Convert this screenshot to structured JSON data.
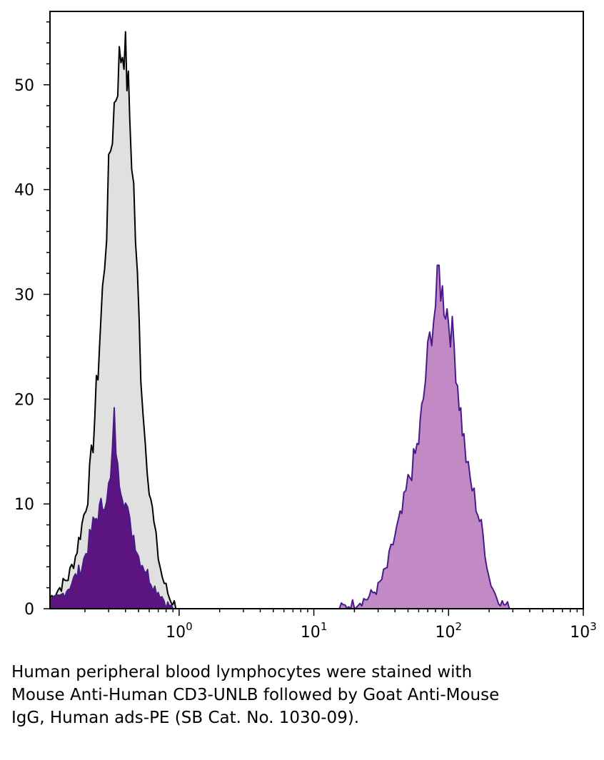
{
  "chart_data": {
    "type": "area",
    "xscale": "log",
    "xlim": [
      0.11,
      1000
    ],
    "ylim": [
      0,
      57
    ],
    "xlabel": "",
    "ylabel": "",
    "grid": false,
    "y_ticks": [
      0,
      10,
      20,
      30,
      40,
      50
    ],
    "x_ticks": [
      {
        "value": 1,
        "base": "10",
        "exp": "0"
      },
      {
        "value": 10,
        "base": "10",
        "exp": "1"
      },
      {
        "value": 100,
        "base": "10",
        "exp": "2"
      },
      {
        "value": 1000,
        "base": "10",
        "exp": "3"
      }
    ],
    "series": [
      {
        "fill": "#e0e0e0",
        "stroke": "#000000",
        "x": [
          0.11,
          0.13,
          0.15,
          0.17,
          0.19,
          0.21,
          0.23,
          0.25,
          0.27,
          0.29,
          0.31,
          0.33,
          0.35,
          0.37,
          0.39,
          0.41,
          0.43,
          0.46,
          0.49,
          0.52,
          0.56,
          0.6,
          0.65,
          0.7,
          0.75,
          0.8,
          0.85,
          0.92,
          1.0
        ],
        "y": [
          1,
          2,
          3,
          5,
          8,
          11,
          16,
          23,
          30,
          37,
          44,
          48,
          51,
          53,
          54,
          51,
          47,
          40,
          31,
          23,
          16,
          12,
          8,
          5,
          3,
          2,
          1,
          0.5,
          0
        ]
      },
      {
        "fill": "#5c1480",
        "stroke": "#4a1a8a",
        "x": [
          0.11,
          0.13,
          0.15,
          0.17,
          0.19,
          0.21,
          0.23,
          0.25,
          0.27,
          0.29,
          0.31,
          0.33,
          0.35,
          0.37,
          0.4,
          0.43,
          0.46,
          0.5,
          0.55,
          0.6,
          0.66,
          0.72,
          0.8,
          0.9
        ],
        "y": [
          0.5,
          1,
          2,
          3,
          4,
          6,
          8,
          9,
          10,
          11,
          12,
          18,
          13,
          12,
          10,
          8,
          7,
          5,
          4,
          3,
          2,
          1.5,
          0.5,
          0
        ]
      },
      {
        "fill": "#c18ac4",
        "stroke": "#4a1a8a",
        "x": [
          15,
          20,
          25,
          30,
          35,
          40,
          45,
          50,
          55,
          60,
          65,
          70,
          75,
          80,
          85,
          90,
          95,
          100,
          110,
          120,
          130,
          140,
          160,
          180,
          200,
          220,
          250,
          300
        ],
        "y": [
          0,
          0.5,
          1,
          2,
          4,
          7,
          9,
          12,
          14,
          16,
          20,
          24,
          27,
          29,
          32,
          30,
          29,
          28,
          25,
          20,
          16,
          13,
          10,
          7,
          3,
          1.5,
          0.5,
          0
        ]
      }
    ]
  },
  "caption": "Human peripheral blood lymphocytes were stained with Mouse Anti-Human CD3-UNLB followed by Goat Anti-Mouse IgG, Human ads-PE (SB Cat. No. 1030-09)."
}
